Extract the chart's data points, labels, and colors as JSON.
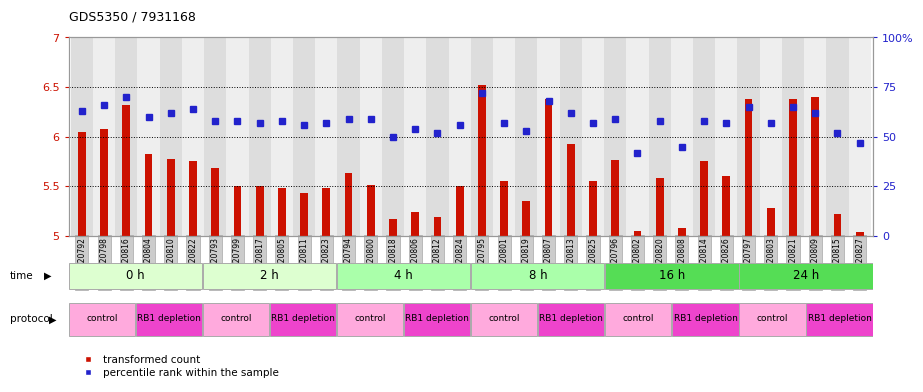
{
  "title": "GDS5350 / 7931168",
  "samples": [
    "GSM1220792",
    "GSM1220798",
    "GSM1220816",
    "GSM1220804",
    "GSM1220810",
    "GSM1220822",
    "GSM1220793",
    "GSM1220799",
    "GSM1220817",
    "GSM1220805",
    "GSM1220811",
    "GSM1220823",
    "GSM1220794",
    "GSM1220800",
    "GSM1220818",
    "GSM1220806",
    "GSM1220812",
    "GSM1220824",
    "GSM1220795",
    "GSM1220801",
    "GSM1220819",
    "GSM1220807",
    "GSM1220813",
    "GSM1220825",
    "GSM1220796",
    "GSM1220802",
    "GSM1220820",
    "GSM1220808",
    "GSM1220814",
    "GSM1220826",
    "GSM1220797",
    "GSM1220803",
    "GSM1220821",
    "GSM1220809",
    "GSM1220815",
    "GSM1220827"
  ],
  "bar_values": [
    6.05,
    6.08,
    6.32,
    5.83,
    5.78,
    5.75,
    5.68,
    5.5,
    5.5,
    5.48,
    5.43,
    5.48,
    5.63,
    5.51,
    5.17,
    5.24,
    5.19,
    5.5,
    6.52,
    5.55,
    5.35,
    6.38,
    5.93,
    5.55,
    5.76,
    5.05,
    5.58,
    5.08,
    5.75,
    5.6,
    6.38,
    5.28,
    6.38,
    6.4,
    5.22,
    5.04
  ],
  "dot_values": [
    63,
    66,
    70,
    60,
    62,
    64,
    58,
    58,
    57,
    58,
    56,
    57,
    59,
    59,
    50,
    54,
    52,
    56,
    72,
    57,
    53,
    68,
    62,
    57,
    59,
    42,
    58,
    45,
    58,
    57,
    65,
    57,
    65,
    62,
    52,
    47
  ],
  "time_labels": [
    "0 h",
    "2 h",
    "4 h",
    "8 h",
    "16 h",
    "24 h"
  ],
  "time_groups": [
    6,
    6,
    6,
    6,
    6,
    6
  ],
  "time_colors": [
    "#ddffd0",
    "#ddffd0",
    "#aaffaa",
    "#aaffaa",
    "#55dd55",
    "#55dd55"
  ],
  "protocol_labels": [
    "control",
    "RB1 depletion",
    "control",
    "RB1 depletion",
    "control",
    "RB1 depletion",
    "control",
    "RB1 depletion",
    "control",
    "RB1 depletion",
    "control",
    "RB1 depletion"
  ],
  "protocol_groups": [
    3,
    3,
    3,
    3,
    3,
    3,
    3,
    3,
    3,
    3,
    3,
    3
  ],
  "protocol_colors": [
    "#ffaadd",
    "#ee44cc",
    "#ffaadd",
    "#ee44cc",
    "#ffaadd",
    "#ee44cc",
    "#ffaadd",
    "#ee44cc",
    "#ffaadd",
    "#ee44cc",
    "#ffaadd",
    "#ee44cc"
  ],
  "ylim_left": [
    5.0,
    7.0
  ],
  "ylim_right": [
    0,
    100
  ],
  "yticks_left": [
    5.0,
    5.5,
    6.0,
    6.5,
    7.0
  ],
  "yticks_right": [
    0,
    25,
    50,
    75,
    100
  ],
  "bar_color": "#cc1100",
  "dot_color": "#2222cc",
  "legend_bar_label": "transformed count",
  "legend_dot_label": "percentile rank within the sample"
}
